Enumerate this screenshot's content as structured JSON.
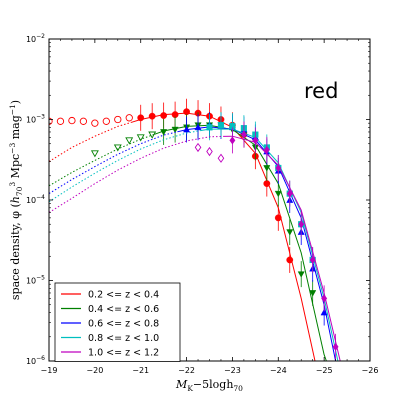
{
  "chart_data": {
    "type": "scatter",
    "title": "",
    "annotation": "red",
    "xlabel": "M_K−5logh_70",
    "ylabel": "space density, φ (h_70^3 Mpc^−3 mag^−1)",
    "xlim": [
      -19,
      -26
    ],
    "ylim": [
      1e-06,
      0.01
    ],
    "y_scale": "log",
    "x_ticks": [
      -19,
      -20,
      -21,
      -22,
      -23,
      -24,
      -25,
      -26
    ],
    "x_tick_labels": [
      "−19",
      "−20",
      "−21",
      "−22",
      "−23",
      "−24",
      "−25",
      "−26"
    ],
    "y_ticks": [
      1e-06,
      1e-05,
      0.0001,
      0.001,
      0.01
    ],
    "y_tick_labels": [
      [
        "10",
        "−6"
      ],
      [
        "10",
        "−5"
      ],
      [
        "10",
        "−4"
      ],
      [
        "10",
        "−3"
      ],
      [
        "10",
        "−2"
      ]
    ],
    "legend_position": "lower-left",
    "series": [
      {
        "name": "0.2 <= z < 0.4",
        "color": "#ff0000",
        "marker": "circle",
        "points": [
          [
            -21.0,
            0.00105
          ],
          [
            -21.25,
            0.0011
          ],
          [
            -21.5,
            0.00112
          ],
          [
            -21.75,
            0.00115
          ],
          [
            -22.0,
            0.00125
          ],
          [
            -22.25,
            0.0012
          ],
          [
            -22.5,
            0.0011
          ],
          [
            -22.75,
            0.001
          ],
          [
            -23.0,
            0.00085
          ],
          [
            -23.25,
            0.00065
          ],
          [
            -23.5,
            0.00035
          ],
          [
            -23.75,
            0.00016
          ],
          [
            -24.0,
            6e-05
          ],
          [
            -24.25,
            1.8e-05
          ]
        ],
        "open_points": [
          [
            -19.0,
            0.00095
          ],
          [
            -19.25,
            0.00095
          ],
          [
            -19.5,
            0.00097
          ],
          [
            -19.75,
            0.00095
          ],
          [
            -20.0,
            0.0009
          ],
          [
            -20.25,
            0.00095
          ],
          [
            -20.5,
            0.001
          ],
          [
            -20.75,
            0.00105
          ]
        ],
        "fit": [
          [
            -19.0,
            0.0003
          ],
          [
            -19.5,
            0.00045
          ],
          [
            -20.0,
            0.00062
          ],
          [
            -20.5,
            0.00082
          ],
          [
            -21.0,
            0.001
          ],
          [
            -21.5,
            0.00115
          ],
          [
            -22.0,
            0.0012
          ],
          [
            -22.5,
            0.0011
          ],
          [
            -23.0,
            0.0008
          ],
          [
            -23.5,
            0.00038
          ],
          [
            -24.0,
            8e-05
          ],
          [
            -24.5,
            6e-06
          ],
          [
            -24.8,
            1e-06
          ]
        ],
        "fit_dotted_until": -20.8
      },
      {
        "name": "0.4 <= z < 0.6",
        "color": "#008000",
        "marker": "triangle-down",
        "points": [
          [
            -21.5,
            0.0007
          ],
          [
            -21.75,
            0.00075
          ],
          [
            -22.0,
            0.0008
          ],
          [
            -22.25,
            0.00085
          ],
          [
            -22.5,
            0.00085
          ],
          [
            -22.75,
            0.00085
          ],
          [
            -23.0,
            0.00075
          ],
          [
            -23.25,
            0.00065
          ],
          [
            -23.5,
            0.00045
          ],
          [
            -23.75,
            0.00025
          ],
          [
            -24.0,
            0.00012
          ],
          [
            -24.25,
            4e-05
          ],
          [
            -24.5,
            1.2e-05
          ],
          [
            -24.75,
            7e-06
          ]
        ],
        "open_points": [
          [
            -20.0,
            0.00038
          ],
          [
            -20.5,
            0.00045
          ],
          [
            -20.75,
            0.00055
          ],
          [
            -21.0,
            0.0006
          ],
          [
            -21.25,
            0.00065
          ]
        ],
        "fit": [
          [
            -19.0,
            0.00015
          ],
          [
            -19.5,
            0.00022
          ],
          [
            -20.0,
            0.00031
          ],
          [
            -20.5,
            0.00043
          ],
          [
            -21.0,
            0.00057
          ],
          [
            -21.5,
            0.00072
          ],
          [
            -22.0,
            0.00082
          ],
          [
            -22.5,
            0.00085
          ],
          [
            -23.0,
            0.00075
          ],
          [
            -23.5,
            0.00048
          ],
          [
            -24.0,
            0.00016
          ],
          [
            -24.5,
            2.2e-05
          ],
          [
            -25.0,
            1.2e-06
          ],
          [
            -25.05,
            1e-06
          ]
        ],
        "fit_dotted_until": -21.3
      },
      {
        "name": "0.6 <= z < 0.8",
        "color": "#0000ff",
        "marker": "triangle-up",
        "points": [
          [
            -22.0,
            0.00075
          ],
          [
            -22.25,
            0.0008
          ],
          [
            -22.5,
            0.00085
          ],
          [
            -22.75,
            0.00083
          ],
          [
            -23.0,
            0.0008
          ],
          [
            -23.25,
            0.00075
          ],
          [
            -23.5,
            0.0006
          ],
          [
            -23.75,
            0.0004
          ],
          [
            -24.0,
            0.00023
          ],
          [
            -24.25,
            0.0001
          ],
          [
            -24.5,
            4e-05
          ],
          [
            -24.75,
            1.4e-05
          ],
          [
            -25.0,
            4e-06
          ]
        ],
        "open_points": [],
        "fit": [
          [
            -19.0,
            0.00012
          ],
          [
            -19.5,
            0.00018
          ],
          [
            -20.0,
            0.00026
          ],
          [
            -20.5,
            0.00037
          ],
          [
            -21.0,
            0.0005
          ],
          [
            -21.5,
            0.00064
          ],
          [
            -22.0,
            0.00075
          ],
          [
            -22.5,
            0.00081
          ],
          [
            -23.0,
            0.00076
          ],
          [
            -23.5,
            0.00056
          ],
          [
            -24.0,
            0.00026
          ],
          [
            -24.5,
            6e-05
          ],
          [
            -25.0,
            5e-06
          ],
          [
            -25.25,
            1e-06
          ]
        ],
        "fit_dotted_until": -21.8
      },
      {
        "name": "0.8 <= z < 1.0",
        "color": "#00bfbf",
        "marker": "square",
        "points": [
          [
            -22.5,
            0.0008
          ],
          [
            -22.75,
            0.00085
          ],
          [
            -23.0,
            0.00083
          ],
          [
            -23.25,
            0.00078
          ],
          [
            -23.5,
            0.00065
          ],
          [
            -23.75,
            0.00045
          ],
          [
            -24.0,
            0.00025
          ],
          [
            -24.25,
            0.00012
          ],
          [
            -24.5,
            5e-05
          ],
          [
            -24.75,
            1.8e-05
          ]
        ],
        "open_points": [],
        "fit": [
          [
            -19.0,
            9.5e-05
          ],
          [
            -19.5,
            0.000145
          ],
          [
            -20.0,
            0.000215
          ],
          [
            -20.5,
            0.00031
          ],
          [
            -21.0,
            0.00043
          ],
          [
            -21.5,
            0.00056
          ],
          [
            -22.0,
            0.00068
          ],
          [
            -22.5,
            0.00076
          ],
          [
            -23.0,
            0.00076
          ],
          [
            -23.5,
            0.0006
          ],
          [
            -24.0,
            0.00029
          ],
          [
            -24.5,
            7e-05
          ],
          [
            -25.0,
            6e-06
          ],
          [
            -25.3,
            1e-06
          ]
        ],
        "fit_dotted_until": -22.3
      },
      {
        "name": "1.0 <= z < 1.2",
        "color": "#bf00bf",
        "marker": "diamond",
        "points": [
          [
            -23.0,
            0.00055
          ],
          [
            -23.25,
            0.00065
          ],
          [
            -23.5,
            0.00055
          ],
          [
            -23.75,
            0.00042
          ],
          [
            -24.0,
            0.00025
          ],
          [
            -24.25,
            0.00012
          ],
          [
            -24.5,
            5e-05
          ],
          [
            -24.75,
            1.8e-05
          ],
          [
            -25.0,
            6e-06
          ],
          [
            -25.25,
            1.5e-06
          ]
        ],
        "open_points": [
          [
            -22.25,
            0.00045
          ],
          [
            -22.5,
            0.0004
          ],
          [
            -22.75,
            0.00033
          ]
        ],
        "fit": [
          [
            -19.0,
            7e-05
          ],
          [
            -19.5,
            0.000105
          ],
          [
            -20.0,
            0.00016
          ],
          [
            -20.5,
            0.000235
          ],
          [
            -21.0,
            0.00033
          ],
          [
            -21.5,
            0.00044
          ],
          [
            -22.0,
            0.00054
          ],
          [
            -22.5,
            0.00061
          ],
          [
            -23.0,
            0.00062
          ],
          [
            -23.5,
            0.00052
          ],
          [
            -24.0,
            0.00027
          ],
          [
            -24.5,
            7.5e-05
          ],
          [
            -25.0,
            7e-06
          ],
          [
            -25.35,
            1e-06
          ]
        ],
        "fit_dotted_until": -22.8
      }
    ]
  }
}
